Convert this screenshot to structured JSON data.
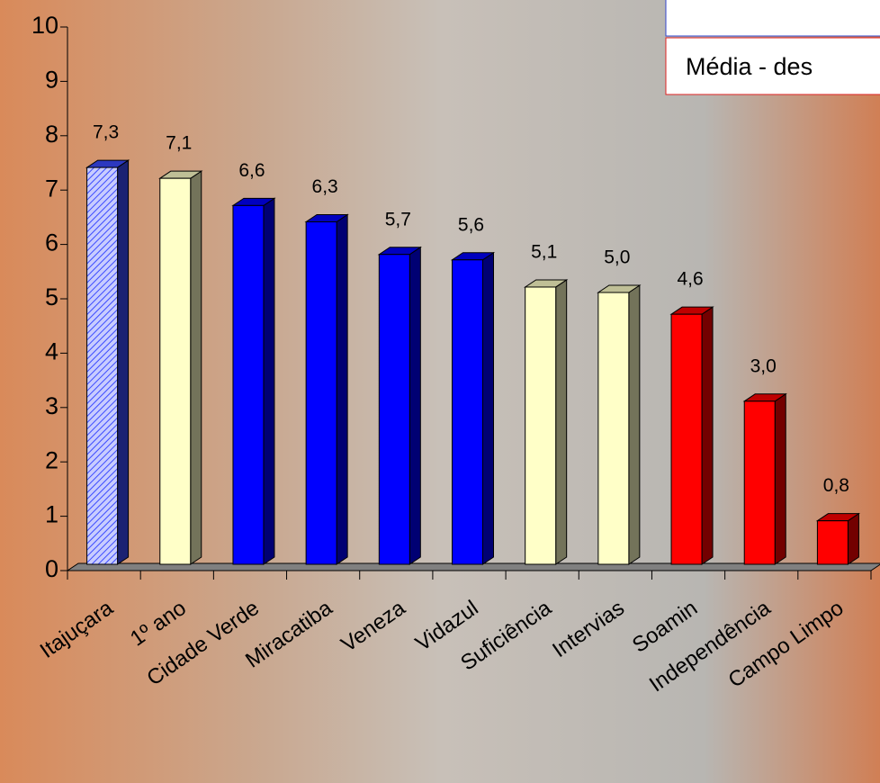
{
  "chart_data": {
    "type": "bar3d",
    "categories": [
      "Itajuçara",
      "1º ano",
      "Cidade Verde",
      "Miracatiba",
      "Veneza",
      "Vidazul",
      "Suficiência",
      "Intervias",
      "Soamin",
      "Independência",
      "Campo Limpo"
    ],
    "values": [
      7.3,
      7.1,
      6.6,
      6.3,
      5.7,
      5.6,
      5.1,
      5.0,
      4.6,
      3.0,
      0.8
    ],
    "value_labels": [
      "7,3",
      "7,1",
      "6,6",
      "6,3",
      "5,7",
      "5,6",
      "5,1",
      "5,0",
      "4,6",
      "3,0",
      "0,8"
    ],
    "colors": [
      "#3b4bff",
      "#ffffc8",
      "#0000ff",
      "#0000ff",
      "#0000ff",
      "#0000ff",
      "#ffffc8",
      "#ffffc8",
      "#ff0000",
      "#ff0000",
      "#ff0000"
    ],
    "hatched_bars": [
      0
    ],
    "ylim": [
      0,
      10
    ],
    "yticks": [
      0,
      1,
      2,
      3,
      4,
      5,
      6,
      7,
      8,
      9,
      10
    ],
    "legend_text": "Média - des"
  }
}
